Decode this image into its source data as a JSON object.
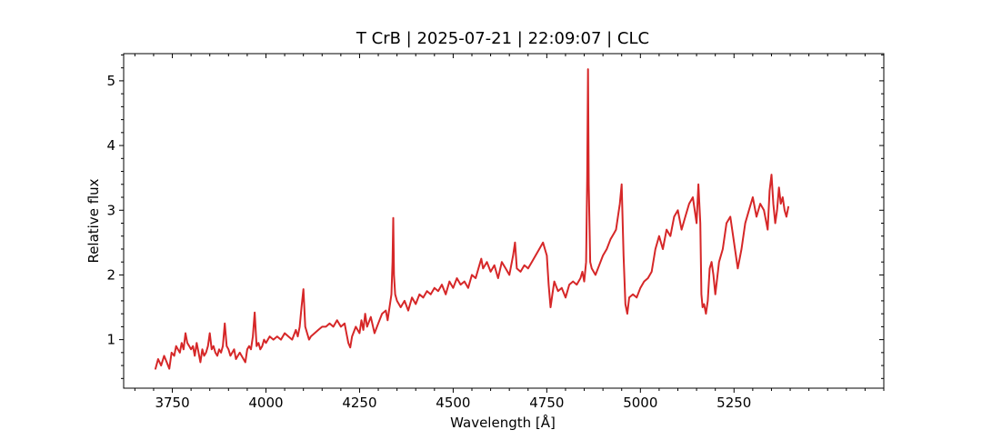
{
  "chart_data": {
    "type": "line",
    "title": "T CrB | 2025-07-21 | 22:09:07 | CLC",
    "xlabel": "Wavelength [Å]",
    "ylabel": "Relative flux",
    "xlim": [
      3620,
      5650
    ],
    "ylim": [
      0.25,
      5.42
    ],
    "xticks": [
      3750,
      4000,
      4250,
      4500,
      4750,
      5000,
      5250
    ],
    "yticks": [
      1,
      2,
      3,
      4,
      5
    ],
    "grid": false,
    "color": "#d62728",
    "series": [
      {
        "x": [
          3705,
          3712,
          3720,
          3728,
          3735,
          3742,
          3748,
          3755,
          3760,
          3765,
          3770,
          3775,
          3780,
          3785,
          3790,
          3795,
          3800,
          3805,
          3810,
          3815,
          3820,
          3825,
          3830,
          3835,
          3840,
          3845,
          3850,
          3855,
          3860,
          3865,
          3870,
          3875,
          3880,
          3885,
          3890,
          3895,
          3900,
          3905,
          3910,
          3915,
          3920,
          3925,
          3930,
          3935,
          3940,
          3945,
          3950,
          3955,
          3960,
          3965,
          3970,
          3975,
          3980,
          3985,
          3990,
          3995,
          4000,
          4010,
          4020,
          4030,
          4040,
          4050,
          4060,
          4070,
          4080,
          4085,
          4090,
          4095,
          4100,
          4105,
          4110,
          4115,
          4120,
          4130,
          4140,
          4150,
          4160,
          4170,
          4180,
          4190,
          4200,
          4210,
          4215,
          4220,
          4225,
          4230,
          4240,
          4250,
          4255,
          4260,
          4265,
          4270,
          4280,
          4290,
          4300,
          4310,
          4320,
          4325,
          4330,
          4335,
          4338,
          4340,
          4342,
          4345,
          4350,
          4355,
          4360,
          4370,
          4380,
          4390,
          4400,
          4410,
          4420,
          4430,
          4440,
          4450,
          4460,
          4470,
          4480,
          4490,
          4500,
          4510,
          4520,
          4530,
          4540,
          4550,
          4560,
          4570,
          4575,
          4580,
          4590,
          4600,
          4610,
          4620,
          4630,
          4640,
          4650,
          4660,
          4665,
          4670,
          4680,
          4690,
          4700,
          4710,
          4720,
          4730,
          4740,
          4750,
          4755,
          4760,
          4765,
          4770,
          4780,
          4790,
          4800,
          4810,
          4820,
          4830,
          4840,
          4845,
          4850,
          4855,
          4858,
          4860,
          4862,
          4866,
          4870,
          4880,
          4890,
          4900,
          4910,
          4920,
          4930,
          4935,
          4940,
          4945,
          4950,
          4955,
          4960,
          4965,
          4970,
          4980,
          4990,
          5000,
          5010,
          5020,
          5030,
          5040,
          5050,
          5060,
          5070,
          5080,
          5090,
          5100,
          5110,
          5120,
          5130,
          5140,
          5150,
          5155,
          5160,
          5163,
          5166,
          5170,
          5175,
          5180,
          5185,
          5190,
          5195,
          5200,
          5210,
          5220,
          5230,
          5240,
          5250,
          5260,
          5270,
          5280,
          5290,
          5300,
          5310,
          5320,
          5330,
          5340,
          5345,
          5350,
          5355,
          5360,
          5365,
          5370,
          5375,
          5380,
          5385,
          5390,
          5395
        ],
        "y": [
          0.55,
          0.7,
          0.6,
          0.75,
          0.65,
          0.55,
          0.8,
          0.75,
          0.9,
          0.85,
          0.8,
          0.95,
          0.85,
          1.1,
          0.95,
          0.9,
          0.85,
          0.9,
          0.75,
          0.95,
          0.8,
          0.65,
          0.85,
          0.75,
          0.8,
          0.9,
          1.1,
          0.85,
          0.9,
          0.8,
          0.75,
          0.85,
          0.8,
          0.9,
          1.25,
          0.9,
          0.85,
          0.75,
          0.8,
          0.85,
          0.7,
          0.75,
          0.8,
          0.75,
          0.7,
          0.65,
          0.85,
          0.9,
          0.85,
          1.05,
          1.42,
          0.9,
          0.95,
          0.85,
          0.9,
          1.0,
          0.95,
          1.05,
          1.0,
          1.05,
          1.0,
          1.1,
          1.05,
          1.0,
          1.15,
          1.05,
          1.2,
          1.5,
          1.78,
          1.2,
          1.1,
          1.0,
          1.05,
          1.1,
          1.15,
          1.2,
          1.2,
          1.25,
          1.2,
          1.3,
          1.2,
          1.25,
          1.1,
          0.95,
          0.88,
          1.05,
          1.2,
          1.1,
          1.3,
          1.15,
          1.4,
          1.2,
          1.35,
          1.1,
          1.25,
          1.4,
          1.45,
          1.3,
          1.5,
          1.7,
          2.2,
          2.88,
          2.0,
          1.7,
          1.6,
          1.55,
          1.5,
          1.6,
          1.45,
          1.65,
          1.55,
          1.7,
          1.65,
          1.75,
          1.7,
          1.8,
          1.75,
          1.85,
          1.7,
          1.9,
          1.8,
          1.95,
          1.85,
          1.9,
          1.8,
          2.0,
          1.95,
          2.15,
          2.25,
          2.1,
          2.2,
          2.05,
          2.15,
          1.95,
          2.2,
          2.1,
          2.0,
          2.3,
          2.5,
          2.1,
          2.05,
          2.15,
          2.1,
          2.2,
          2.3,
          2.4,
          2.5,
          2.3,
          1.85,
          1.5,
          1.7,
          1.9,
          1.75,
          1.8,
          1.65,
          1.85,
          1.9,
          1.85,
          1.95,
          2.05,
          1.9,
          2.2,
          3.5,
          5.18,
          3.4,
          2.2,
          2.1,
          2.0,
          2.15,
          2.3,
          2.4,
          2.55,
          2.65,
          2.7,
          2.9,
          3.1,
          3.4,
          2.3,
          1.55,
          1.4,
          1.65,
          1.7,
          1.65,
          1.8,
          1.9,
          1.95,
          2.05,
          2.4,
          2.6,
          2.4,
          2.7,
          2.6,
          2.9,
          3.0,
          2.7,
          2.9,
          3.1,
          3.2,
          2.8,
          3.4,
          2.8,
          1.7,
          1.5,
          1.55,
          1.4,
          1.6,
          2.1,
          2.2,
          2.0,
          1.7,
          2.2,
          2.4,
          2.8,
          2.9,
          2.5,
          2.1,
          2.4,
          2.8,
          3.0,
          3.2,
          2.9,
          3.1,
          3.0,
          2.7,
          3.3,
          3.55,
          3.1,
          2.8,
          3.0,
          3.35,
          3.1,
          3.2,
          3.0,
          2.9,
          3.05
        ]
      }
    ]
  }
}
